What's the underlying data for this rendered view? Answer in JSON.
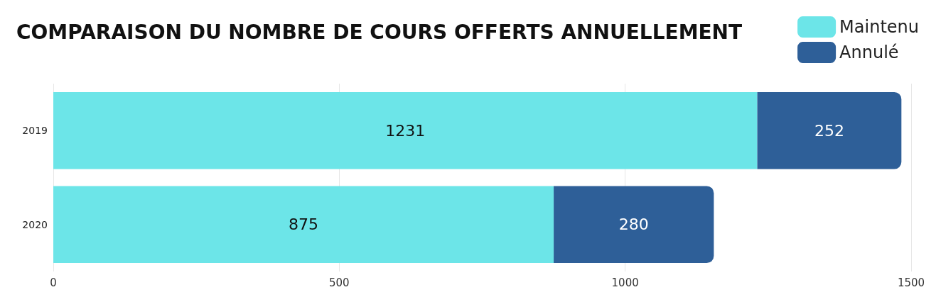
{
  "chart_data": {
    "type": "bar",
    "orientation": "horizontal",
    "stacked": true,
    "title": "COMPARAISON DU NOMBRE DE COURS OFFERTS ANNUELLEMENT",
    "categories": [
      "2019",
      "2020"
    ],
    "series": [
      {
        "name": "Maintenu",
        "color": "#6ce5e8",
        "values": [
          1231,
          875
        ]
      },
      {
        "name": "Annulé",
        "color": "#2e5f98",
        "values": [
          252,
          280
        ]
      }
    ],
    "xlim": [
      0,
      1500
    ],
    "xticks": [
      0,
      500,
      1000,
      1500
    ],
    "grid": "x",
    "legend": "top right",
    "data_labels": true
  }
}
